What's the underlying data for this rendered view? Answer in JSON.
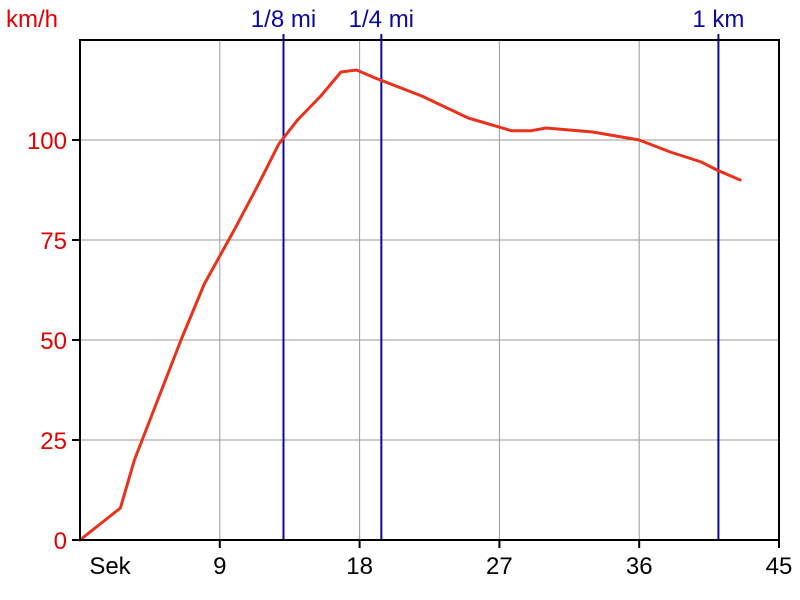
{
  "chart_data": {
    "type": "line",
    "ylabel": "km/h",
    "xlabel": "Sek",
    "xlim": [
      0,
      45
    ],
    "ylim": [
      0,
      125
    ],
    "x_ticks": [
      9,
      18,
      27,
      36,
      45
    ],
    "y_ticks": [
      0,
      25,
      50,
      75,
      100
    ],
    "grid": true,
    "series": [
      {
        "x": [
          0,
          2.6,
          3.5,
          5,
          6.5,
          8,
          10,
          11.5,
          12.8,
          14,
          15.5,
          16.8,
          17.8,
          19,
          22,
          25,
          27.8,
          29,
          30,
          33,
          36,
          38,
          40,
          41,
          42.5
        ],
        "y": [
          0,
          8,
          20,
          35,
          50,
          64,
          78,
          89,
          99,
          105,
          111,
          117,
          117.5,
          115.5,
          111,
          105.5,
          102.3,
          102.3,
          103,
          102,
          100,
          97,
          94.5,
          92.5,
          90
        ]
      }
    ],
    "markers": [
      {
        "label": "1/8 mi",
        "x": 13.1
      },
      {
        "label": "1/4 mi",
        "x": 19.4
      },
      {
        "label": "1 km",
        "x": 41.1
      }
    ],
    "colors": {
      "series": "#e8321c",
      "axis_label": "#e50000",
      "marker": "#0a0aa0",
      "grid": "#9a9a9a",
      "axis": "#000000"
    }
  }
}
